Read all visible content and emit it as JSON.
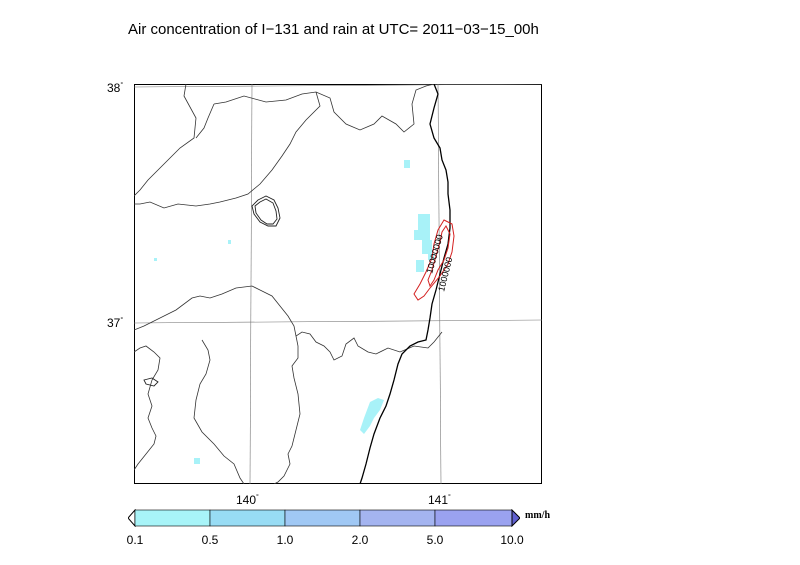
{
  "title": "Air concentration of I−131 and rain at UTC= 2011−03−15_00h",
  "map": {
    "lat_labels": [
      "38",
      "37"
    ],
    "lon_labels": [
      "140",
      "141"
    ],
    "degree_symbol": "°",
    "contour_labels": [
      "10000000",
      "1000000"
    ],
    "contour_color": "#d42020",
    "coast_color": "#000000",
    "border_color": "#333333",
    "rain_light_color": "#a8f2f8"
  },
  "colorbar": {
    "unit": "mm/h",
    "tick_labels": [
      "0.1",
      "0.5",
      "1.0",
      "2.0",
      "5.0",
      "10.0"
    ],
    "colors": [
      "#a8f4f8",
      "#98dcf4",
      "#a0c8f4",
      "#a4b4f0",
      "#9aa2f0"
    ]
  }
}
